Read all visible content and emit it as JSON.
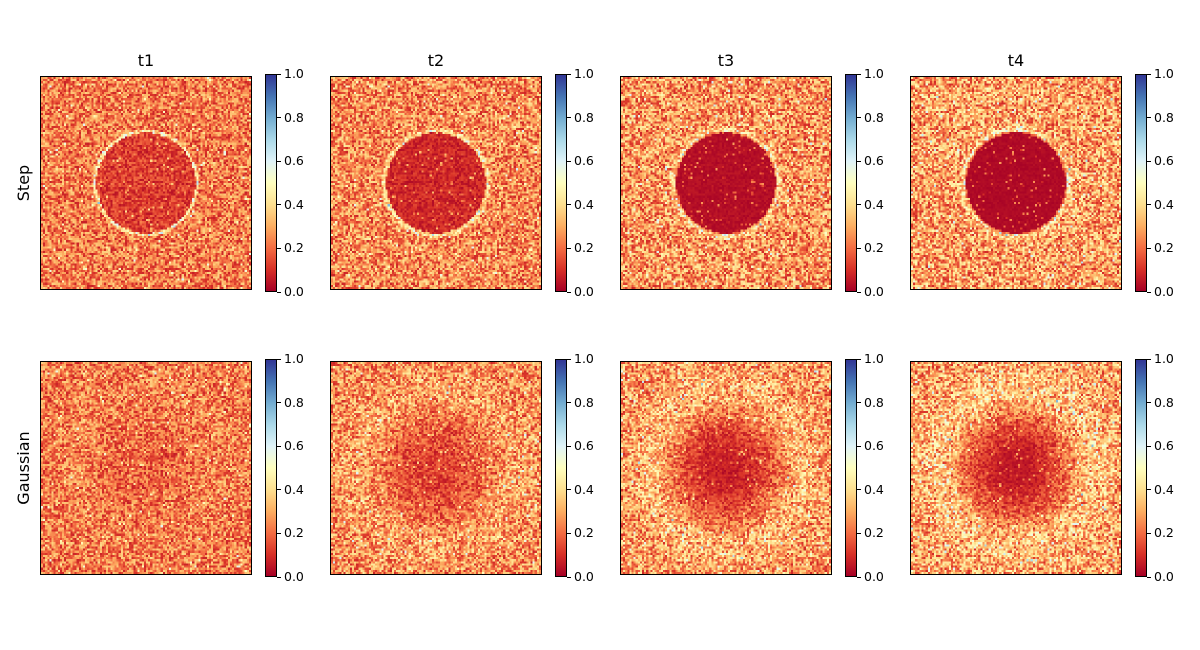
{
  "chart_data": {
    "type": "heatmap",
    "columns": [
      "t1",
      "t2",
      "t3",
      "t4"
    ],
    "rows": [
      "Step",
      "Gaussian"
    ],
    "colormap": "RdYlBu",
    "colorbar": {
      "range": [
        0.0,
        1.0
      ],
      "ticks": [
        "0.0",
        "0.2",
        "0.4",
        "0.6",
        "0.8",
        "1.0"
      ]
    },
    "grid_size": 100,
    "panels": [
      {
        "row": "Step",
        "col": "t1",
        "kind": "step",
        "ring_strength": 1.0,
        "inner_level": 0.12,
        "outer_level": 0.22
      },
      {
        "row": "Step",
        "col": "t2",
        "kind": "step",
        "ring_strength": 0.85,
        "inner_level": 0.08,
        "outer_level": 0.24
      },
      {
        "row": "Step",
        "col": "t3",
        "kind": "step",
        "ring_strength": 0.7,
        "inner_level": 0.03,
        "outer_level": 0.26
      },
      {
        "row": "Step",
        "col": "t4",
        "kind": "step",
        "ring_strength": 0.6,
        "inner_level": 0.02,
        "outer_level": 0.28
      },
      {
        "row": "Gaussian",
        "col": "t1",
        "kind": "gaussian",
        "inner_level": 0.18,
        "outer_level": 0.22
      },
      {
        "row": "Gaussian",
        "col": "t2",
        "kind": "gaussian",
        "inner_level": 0.12,
        "outer_level": 0.25
      },
      {
        "row": "Gaussian",
        "col": "t3",
        "kind": "gaussian",
        "inner_level": 0.06,
        "outer_level": 0.27
      },
      {
        "row": "Gaussian",
        "col": "t4",
        "kind": "gaussian",
        "inner_level": 0.04,
        "outer_level": 0.29
      }
    ]
  }
}
